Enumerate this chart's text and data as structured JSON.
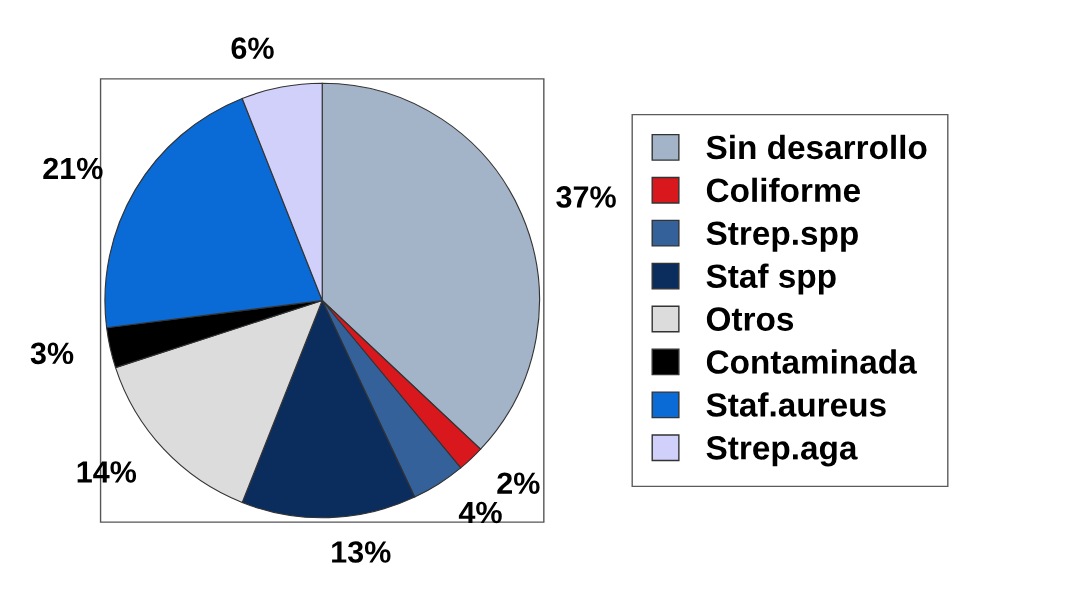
{
  "chart_data": {
    "type": "pie",
    "categories": [
      "Sin desarrollo",
      "Coliforme",
      "Strep.spp",
      "Staf spp",
      "Otros",
      "Contaminada",
      "Staf.aureus",
      "Strep.aga"
    ],
    "values": [
      37,
      2,
      4,
      13,
      14,
      3,
      21,
      6
    ],
    "colors": [
      "#a3b3c8",
      "#d9181e",
      "#34619a",
      "#0b2d5e",
      "#dcdcdc",
      "#000000",
      "#0a6ad6",
      "#d0d0fa"
    ],
    "value_labels": [
      "37%",
      "2%",
      "4%",
      "13%",
      "14%",
      "3%",
      "21%",
      "6%"
    ],
    "legend": "right"
  }
}
